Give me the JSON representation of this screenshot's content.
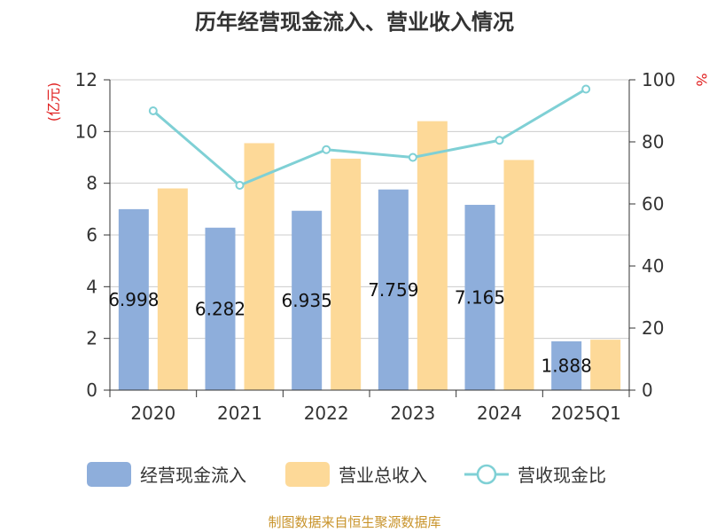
{
  "title": "历年经营现金流入、营业收入情况",
  "left_unit": "(亿元)",
  "right_unit": "%",
  "source": "制图数据来自恒生聚源数据库",
  "colors": {
    "cash_inflow": "#8eaedb",
    "revenue": "#fdd998",
    "ratio": "#7fd0d5",
    "left_unit": "#e02020",
    "source": "#c8932a"
  },
  "chart_data": {
    "type": "bar",
    "categories": [
      "2020",
      "2021",
      "2022",
      "2023",
      "2024",
      "2025Q1"
    ],
    "series": [
      {
        "name": "经营现金流入",
        "type": "bar",
        "axis": "left",
        "values": [
          6.998,
          6.282,
          6.935,
          7.759,
          7.165,
          1.888
        ],
        "labels": [
          "6.998",
          "6.282",
          "6.935",
          "7.759",
          "7.165",
          "1.888"
        ]
      },
      {
        "name": "营业总收入",
        "type": "bar",
        "axis": "left",
        "values": [
          7.8,
          9.55,
          8.95,
          10.4,
          8.9,
          1.95
        ]
      },
      {
        "name": "营收现金比",
        "type": "line",
        "axis": "right",
        "values": [
          90,
          66,
          77.5,
          75,
          80.5,
          97
        ]
      }
    ],
    "left_axis": {
      "ylim": [
        0,
        12
      ],
      "ticks": [
        "0",
        "2",
        "4",
        "6",
        "8",
        "10",
        "12"
      ]
    },
    "right_axis": {
      "ylim": [
        0,
        100
      ],
      "ticks": [
        "0",
        "20",
        "40",
        "60",
        "80",
        "100"
      ]
    },
    "grid": true,
    "legend": "bottom"
  }
}
